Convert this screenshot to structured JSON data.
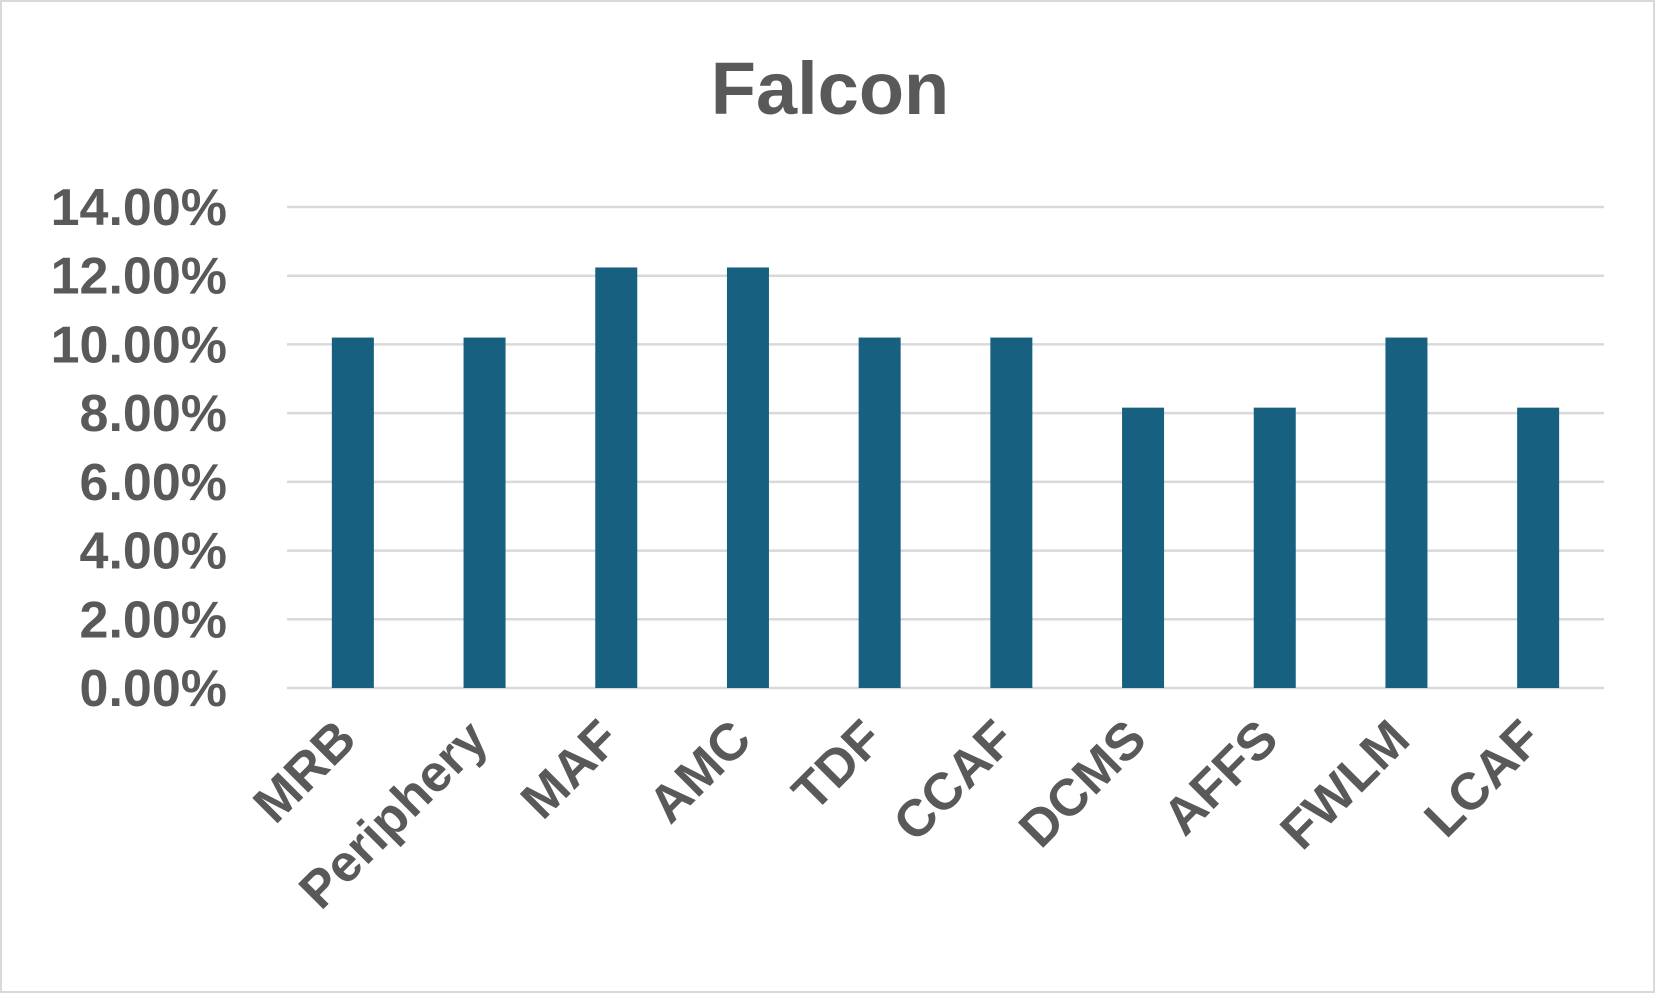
{
  "chart_data": {
    "type": "bar",
    "title": "Falcon",
    "xlabel": "",
    "ylabel": "",
    "categories": [
      "MRB",
      "Periphery",
      "MAF",
      "AMC",
      "TDF",
      "CCAF",
      "DCMS",
      "AFFS",
      "FWLM",
      "LCAF"
    ],
    "series": [
      {
        "values": [
          10.2,
          10.2,
          12.24,
          12.24,
          10.2,
          10.2,
          8.16,
          8.16,
          10.2,
          8.16
        ]
      }
    ],
    "ylim": [
      0,
      14
    ],
    "yticks": [
      0,
      2,
      4,
      6,
      8,
      10,
      12,
      14
    ],
    "ytick_labels": [
      "0.00%",
      "2.00%",
      "4.00%",
      "6.00%",
      "8.00%",
      "10.00%",
      "12.00%",
      "14.00%"
    ],
    "grid": true,
    "legend": "none",
    "bar_color": "#17607f"
  }
}
